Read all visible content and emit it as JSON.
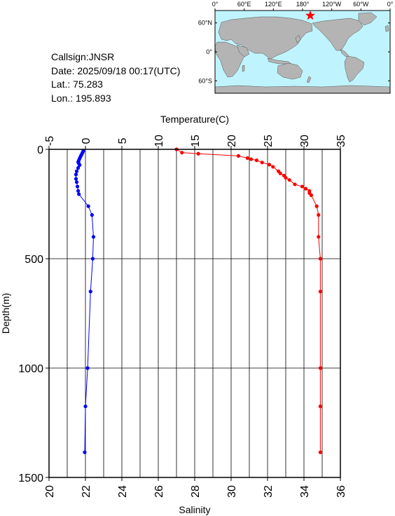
{
  "station": {
    "callsign": "Callsign:JNSR",
    "date": "Date:  2025/09/18 00:17(UTC)",
    "lat": "Lat.:  75.283",
    "lon": "Lon.:  195.893"
  },
  "map": {
    "top_labels": [
      "0°",
      "60°E",
      "120°E",
      "180°",
      "120°W",
      "60°W",
      "0°"
    ],
    "left_labels": [
      "60°N",
      "0°",
      "60°S"
    ],
    "ocean_color": "#bff4ff",
    "land_color": "#b4b4b4",
    "marker": {
      "lon": 195.893,
      "lat": 75.283,
      "color": "#ff0000",
      "icon": "star-icon"
    }
  },
  "chart_data": {
    "type": "line",
    "ylabel": "Depth(m)",
    "ylim": [
      1500,
      0
    ],
    "yticks": [
      0,
      500,
      1000,
      1500
    ],
    "temperature_axis": {
      "label": "Temperature(C)",
      "lim": [
        -5,
        35
      ],
      "ticks": [
        -5,
        0,
        5,
        10,
        15,
        20,
        25,
        30,
        35
      ],
      "position": "top"
    },
    "salinity_axis": {
      "label": "Salinity",
      "lim": [
        20,
        36
      ],
      "ticks": [
        20,
        22,
        24,
        26,
        28,
        30,
        32,
        34,
        36
      ],
      "position": "bottom"
    },
    "grid": true,
    "series": [
      {
        "axis": "temperature",
        "color": "#0000ff",
        "depth": [
          8,
          15,
          22,
          28,
          35,
          42,
          50,
          58,
          65,
          72,
          85,
          100,
          115,
          135,
          150,
          170,
          190,
          205,
          260,
          300,
          400,
          500,
          650,
          1000,
          1175,
          1385
        ],
        "values": [
          -0.3,
          -0.4,
          -0.5,
          -0.6,
          -0.7,
          -0.8,
          -0.9,
          -1.0,
          -0.9,
          -0.8,
          -1.0,
          -1.2,
          -1.3,
          -1.3,
          -1.2,
          -1.1,
          -1.0,
          -0.9,
          0.4,
          0.9,
          1.1,
          1.0,
          0.7,
          0.3,
          0.0,
          -0.1
        ]
      },
      {
        "axis": "salinity",
        "color": "#ff0000",
        "depth": [
          0,
          15,
          20,
          30,
          40,
          45,
          50,
          60,
          70,
          80,
          100,
          110,
          120,
          130,
          140,
          160,
          170,
          180,
          190,
          200,
          210,
          260,
          300,
          400,
          500,
          650,
          1000,
          1175,
          1385
        ],
        "values": [
          27.0,
          27.3,
          28.2,
          30.4,
          30.9,
          31.1,
          31.4,
          31.7,
          32.1,
          32.3,
          32.6,
          32.7,
          32.9,
          33.0,
          33.2,
          33.5,
          33.9,
          34.1,
          34.3,
          34.3,
          34.4,
          34.7,
          34.8,
          34.8,
          34.9,
          34.9,
          34.9,
          34.9,
          34.9
        ]
      }
    ]
  }
}
